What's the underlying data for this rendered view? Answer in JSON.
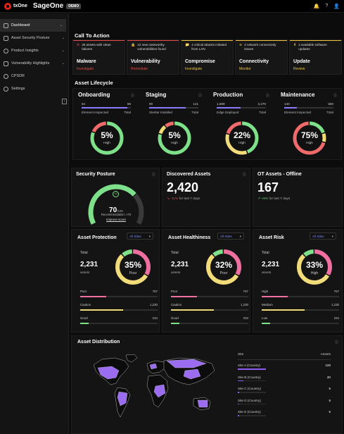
{
  "topbar": {
    "brand": "txOne",
    "app": "SageOne",
    "badge": "DEMO"
  },
  "sidebar": {
    "items": [
      {
        "label": "Dashboard",
        "chev": "⌄"
      },
      {
        "label": "Asset Security Posture",
        "chev": "⌄"
      },
      {
        "label": "Product Insights",
        "chev": "⌄"
      },
      {
        "label": "Vulnerability Highlights",
        "chev": "⌄"
      },
      {
        "label": "CPSDR",
        "chev": ""
      },
      {
        "label": "Settings",
        "chev": ""
      }
    ]
  },
  "cta": {
    "title": "Call To Action",
    "cards": [
      {
        "text": "25 assets with clean failures",
        "title": "Malware",
        "action": "Investigate",
        "color": "#e24a4a"
      },
      {
        "text": "12 new noteworthy vulnerabilities found",
        "title": "Vulnerability",
        "action": "Remediate",
        "color": "#e24a4a"
      },
      {
        "text": "4 critical attacks initiated from LAN",
        "title": "Compromise",
        "action": "Investigate",
        "color": "#f0c33c"
      },
      {
        "text": "2 network connectivity issues",
        "title": "Connectivity",
        "action": "Monitor",
        "color": "#f0c33c"
      },
      {
        "text": "2 available software updates",
        "title": "Update",
        "action": "Review",
        "color": "#f0c33c"
      }
    ]
  },
  "lifecycle": {
    "title": "Asset Lifecycle",
    "stages": [
      {
        "name": "Onboarding",
        "left": "64",
        "right": "69",
        "left_label": "Element Inspected",
        "right_label": "Total",
        "fill": 0.93,
        "pct": "5%",
        "level": "High",
        "green": 0.82,
        "yellow": 0.0,
        "red": 0.18
      },
      {
        "name": "Staging",
        "left": "90",
        "right": "121",
        "left_label": "Sterilar Installed",
        "right_label": "Total",
        "fill": 0.74,
        "pct": "5%",
        "level": "High",
        "green": 0.8,
        "yellow": 0.1,
        "red": 0.1
      },
      {
        "name": "Production",
        "left": "1,589",
        "right": "3,270",
        "left_label": "Edge Deployed",
        "right_label": "Total",
        "fill": 0.49,
        "pct": "22%",
        "level": "High",
        "green": 0.45,
        "yellow": 0.35,
        "red": 0.2
      },
      {
        "name": "Maintenance",
        "left": "140",
        "right": "560",
        "left_label": "Element Inspected",
        "right_label": "Total",
        "fill": 0.25,
        "pct": "75%",
        "level": "High",
        "green": 0.2,
        "yellow": 0.1,
        "red": 0.7
      }
    ]
  },
  "posture": {
    "title": "Security Posture",
    "score": "70",
    "outof": "/100",
    "rec": "Recommendation: >70",
    "link": "Improve score",
    "value": 0.7
  },
  "discovered": {
    "title": "Discovered Assets",
    "value": "2,420",
    "change": "-11%",
    "period": "for last 7 days"
  },
  "offline": {
    "title": "OT Assets - Offline",
    "value": "167",
    "change": "+8%",
    "period": "for last 7 days"
  },
  "panels": [
    {
      "title": "Asset Protection",
      "filter": "All Sites",
      "total_label": "Total",
      "total": "2,231",
      "unit": "assets",
      "pct": "35%",
      "level": "Poor",
      "rows": [
        {
          "label": "Poor",
          "value": "767",
          "color": "#ef6fa0",
          "frac": 0.34
        },
        {
          "label": "Caution",
          "value": "1,230",
          "color": "#f2dc7a",
          "frac": 0.55
        },
        {
          "label": "Good",
          "value": "234",
          "color": "#7ee08a",
          "frac": 0.11
        }
      ],
      "ring": [
        0.34,
        0.55,
        0.11
      ]
    },
    {
      "title": "Asset Healthiness",
      "filter": "All Sites",
      "total_label": "Total",
      "total": "2,231",
      "unit": "assets",
      "pct": "32%",
      "level": "Poor",
      "rows": [
        {
          "label": "Poor",
          "value": "767",
          "color": "#ef6fa0",
          "frac": 0.34
        },
        {
          "label": "Caution",
          "value": "1,230",
          "color": "#f2dc7a",
          "frac": 0.55
        },
        {
          "label": "Good",
          "value": "234",
          "color": "#7ee08a",
          "frac": 0.11
        }
      ],
      "ring": [
        0.34,
        0.55,
        0.11
      ]
    },
    {
      "title": "Asset Risk",
      "filter": "All Sites",
      "total_label": "Total",
      "total": "2,231",
      "unit": "assets",
      "pct": "33%",
      "level": "High",
      "rows": [
        {
          "label": "High",
          "value": "767",
          "color": "#ef6fa0",
          "frac": 0.34
        },
        {
          "label": "Medium",
          "value": "1,230",
          "color": "#f2dc7a",
          "frac": 0.55
        },
        {
          "label": "Low",
          "value": "234",
          "color": "#7ee08a",
          "frac": 0.11
        }
      ],
      "ring": [
        0.34,
        0.55,
        0.11
      ]
    }
  ],
  "distribution": {
    "title": "Asset Distribution",
    "col_site": "Site",
    "col_assets": "Assets",
    "rows": [
      {
        "site": "Site A (Country)",
        "assets": "100",
        "frac": 1.0
      },
      {
        "site": "Site B (Country)",
        "assets": "20",
        "frac": 0.2
      },
      {
        "site": "Site C (Country)",
        "assets": "5",
        "frac": 0.05
      },
      {
        "site": "Site D (Country)",
        "assets": "5",
        "frac": 0.05
      },
      {
        "site": "Site E (Country)",
        "assets": "5",
        "frac": 0.05
      }
    ]
  }
}
